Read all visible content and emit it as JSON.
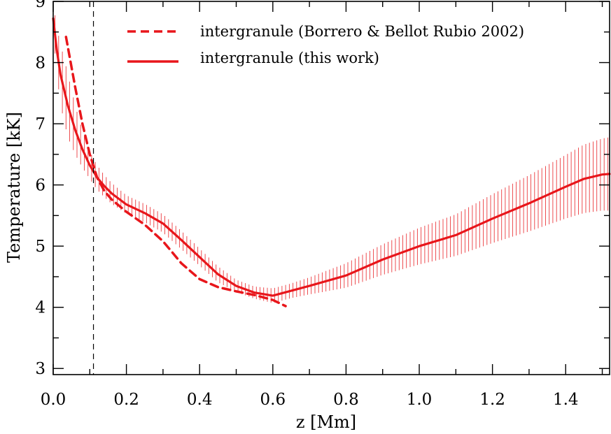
{
  "chart_data": {
    "type": "line",
    "xlabel": "z [Mm]",
    "ylabel": "Temperature [kK]",
    "xlim": [
      0.0,
      1.52
    ],
    "ylim": [
      2.9,
      9.0
    ],
    "xticks_major": [
      0.0,
      0.2,
      0.4,
      0.6,
      0.8,
      1.0,
      1.2,
      1.4
    ],
    "xtick_labels": [
      "0.0",
      "0.2",
      "0.4",
      "0.6",
      "0.8",
      "1.0",
      "1.2",
      "1.4"
    ],
    "yticks_major": [
      3,
      4,
      5,
      6,
      7,
      8,
      9
    ],
    "ytick_labels": [
      "3",
      "4",
      "5",
      "6",
      "7",
      "8",
      "9"
    ],
    "reference_line_x": 0.11,
    "legend_position": "top-right",
    "line_color": "#e8161b",
    "series": [
      {
        "name": "intergranule (Borrero & Bellot Rubio 2002)",
        "style": "dashed",
        "x": [
          0.035,
          0.06,
          0.08,
          0.1,
          0.12,
          0.14,
          0.16,
          0.2,
          0.25,
          0.3,
          0.35,
          0.4,
          0.45,
          0.5,
          0.55,
          0.6,
          0.635
        ],
        "y": [
          8.42,
          7.6,
          7.0,
          6.5,
          6.12,
          5.9,
          5.76,
          5.56,
          5.35,
          5.08,
          4.72,
          4.46,
          4.33,
          4.26,
          4.2,
          4.12,
          4.02
        ]
      },
      {
        "name": "intergranule (this work)",
        "style": "solid",
        "x": [
          0.0,
          0.01,
          0.02,
          0.04,
          0.06,
          0.08,
          0.1,
          0.12,
          0.14,
          0.16,
          0.2,
          0.25,
          0.3,
          0.35,
          0.4,
          0.45,
          0.5,
          0.55,
          0.6,
          0.65,
          0.7,
          0.8,
          0.9,
          1.0,
          1.1,
          1.2,
          1.3,
          1.4,
          1.45,
          1.5,
          1.52
        ],
        "y": [
          8.72,
          8.2,
          7.8,
          7.3,
          6.9,
          6.58,
          6.32,
          6.12,
          5.98,
          5.86,
          5.68,
          5.54,
          5.37,
          5.1,
          4.82,
          4.54,
          4.35,
          4.24,
          4.19,
          4.27,
          4.35,
          4.52,
          4.78,
          5.0,
          5.18,
          5.45,
          5.7,
          5.97,
          6.1,
          6.17,
          6.18
        ],
        "error_band": {
          "x": [
            0.0,
            0.02,
            0.04,
            0.06,
            0.08,
            0.1,
            0.12,
            0.14,
            0.16,
            0.2,
            0.25,
            0.3,
            0.35,
            0.4,
            0.45,
            0.5,
            0.55,
            0.6,
            0.65,
            0.7,
            0.8,
            0.9,
            1.0,
            1.1,
            1.2,
            1.3,
            1.4,
            1.45,
            1.52
          ],
          "half_width": [
            0.25,
            0.5,
            0.52,
            0.4,
            0.3,
            0.22,
            0.2,
            0.18,
            0.17,
            0.15,
            0.15,
            0.15,
            0.15,
            0.14,
            0.13,
            0.1,
            0.1,
            0.12,
            0.12,
            0.14,
            0.2,
            0.25,
            0.3,
            0.34,
            0.4,
            0.46,
            0.52,
            0.56,
            0.6
          ]
        }
      }
    ]
  }
}
